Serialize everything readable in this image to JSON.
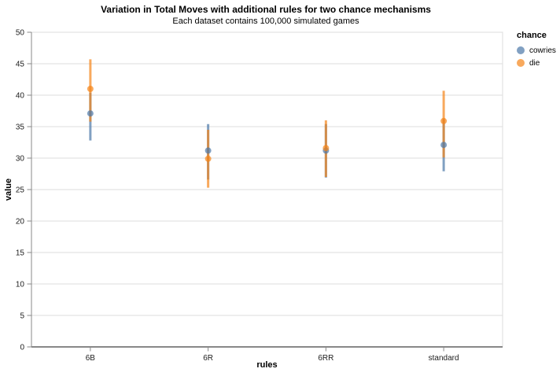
{
  "chart_data": {
    "type": "scatter",
    "title": "Variation in Total Moves with additional rules for two chance mechanisms",
    "subtitle": "Each dataset contains 100,000 simulated games",
    "xlabel": "rules",
    "ylabel": "value",
    "categories": [
      "6B",
      "6R",
      "6RR",
      "standard"
    ],
    "ylim": [
      0,
      50
    ],
    "yticks": [
      0,
      5,
      10,
      15,
      20,
      25,
      30,
      35,
      40,
      45,
      50
    ],
    "grid": true,
    "legend": {
      "title": "chance",
      "position": "right"
    },
    "opacity": 0.7,
    "colors": {
      "grid": "#dddddd",
      "panel_border": "#dddddd",
      "axis_domain": "#888888"
    },
    "series": [
      {
        "name": "cowries",
        "color": "#4c78a8",
        "means": [
          37.1,
          31.2,
          31.2,
          32.1
        ],
        "err_low": [
          32.8,
          26.6,
          26.9,
          27.9
        ],
        "err_high": [
          40.4,
          35.4,
          35.4,
          36.2
        ]
      },
      {
        "name": "die",
        "color": "#f58518",
        "means": [
          41.0,
          29.9,
          31.6,
          35.9
        ],
        "err_low": [
          35.8,
          25.3,
          27.0,
          30.1
        ],
        "err_high": [
          45.7,
          34.5,
          36.0,
          40.7
        ]
      }
    ]
  }
}
